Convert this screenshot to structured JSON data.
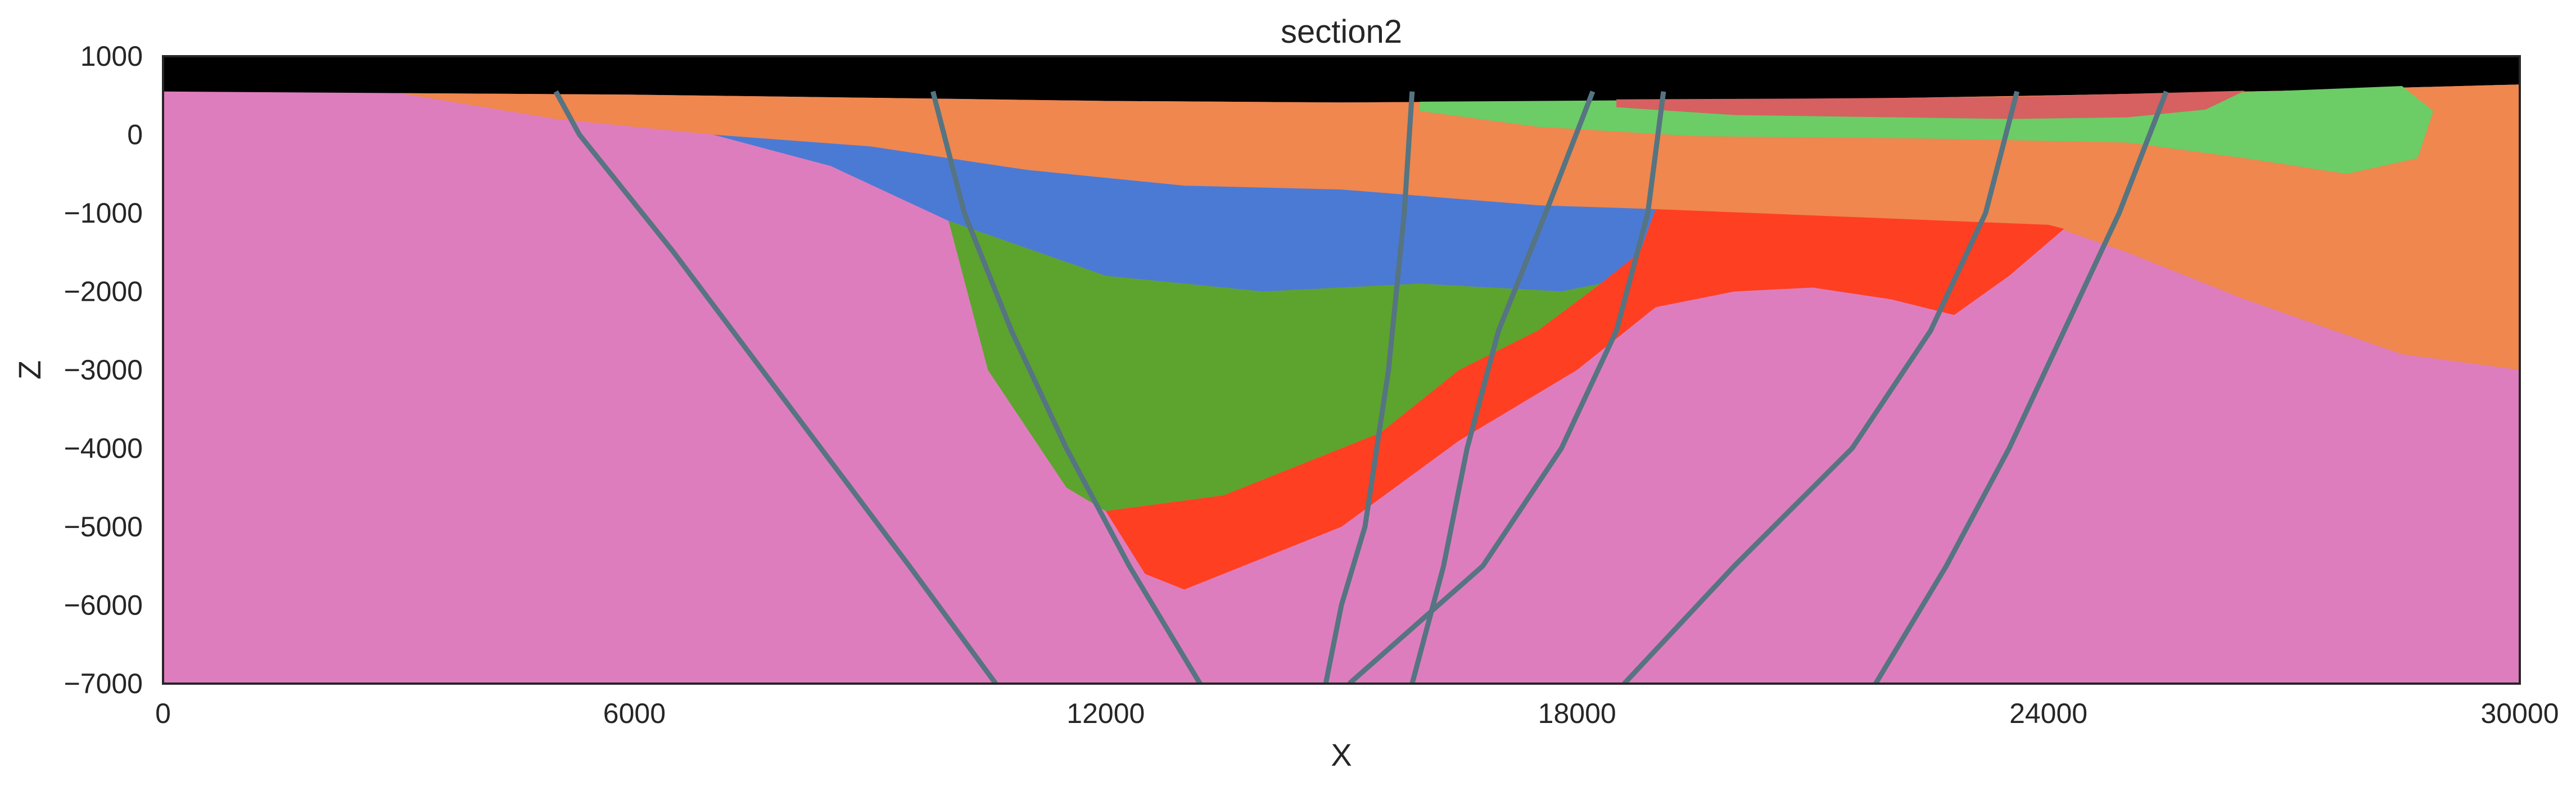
{
  "chart_data": {
    "type": "geological-section",
    "title": "section2",
    "xlabel": "X",
    "ylabel": "Z",
    "xlim": [
      0,
      30000
    ],
    "ylim": [
      -7000,
      1000
    ],
    "xticks": [
      0,
      6000,
      12000,
      18000,
      24000,
      30000
    ],
    "yticks": [
      1000,
      0,
      -1000,
      -2000,
      -3000,
      -4000,
      -5000,
      -6000,
      -7000
    ],
    "xtick_labels": [
      "0",
      "6000",
      "12000",
      "18000",
      "24000",
      "30000"
    ],
    "ytick_labels": [
      "1000",
      "0",
      "−1000",
      "−2000",
      "−3000",
      "−4000",
      "−5000",
      "−6000",
      "−7000"
    ],
    "grid": false,
    "colors": {
      "basement": "#de7dbd",
      "orange": "#ef874e",
      "blue": "#4b7ad4",
      "green_dark": "#5ca42e",
      "red": "#ff3f22",
      "green_light": "#6ccc66",
      "red_light": "#d76061",
      "air": "#000000",
      "fault": "#567481"
    },
    "units": [
      {
        "name": "air",
        "polygon": [
          [
            0,
            1000
          ],
          [
            30000,
            1000
          ],
          [
            30000,
            640
          ],
          [
            27000,
            560
          ],
          [
            24000,
            500
          ],
          [
            21000,
            450
          ],
          [
            18000,
            430
          ],
          [
            15000,
            410
          ],
          [
            12000,
            430
          ],
          [
            9000,
            470
          ],
          [
            6000,
            510
          ],
          [
            3000,
            530
          ],
          [
            0,
            550
          ]
        ]
      },
      {
        "name": "orange",
        "polygon": [
          [
            3000,
            530
          ],
          [
            6000,
            510
          ],
          [
            9000,
            470
          ],
          [
            12000,
            430
          ],
          [
            15000,
            410
          ],
          [
            18000,
            430
          ],
          [
            21000,
            450
          ],
          [
            24000,
            500
          ],
          [
            27000,
            560
          ],
          [
            30000,
            640
          ],
          [
            30000,
            -3000
          ],
          [
            28500,
            -2800
          ],
          [
            26500,
            -2100
          ],
          [
            25000,
            -1500
          ],
          [
            24000,
            -1150
          ],
          [
            21500,
            -1050
          ],
          [
            19000,
            -1000
          ],
          [
            17500,
            -900
          ],
          [
            15000,
            -700
          ],
          [
            13000,
            -650
          ],
          [
            11000,
            -450
          ],
          [
            9000,
            -150
          ],
          [
            7000,
            0
          ],
          [
            5000,
            200
          ]
        ]
      },
      {
        "name": "green_light",
        "polygon": [
          [
            16000,
            420
          ],
          [
            19000,
            440
          ],
          [
            22000,
            460
          ],
          [
            25000,
            500
          ],
          [
            26500,
            540
          ],
          [
            28500,
            620
          ],
          [
            28900,
            300
          ],
          [
            28700,
            -300
          ],
          [
            27800,
            -500
          ],
          [
            26500,
            -300
          ],
          [
            25000,
            -100
          ],
          [
            22500,
            -50
          ],
          [
            19500,
            -20
          ],
          [
            17500,
            100
          ],
          [
            16000,
            300
          ]
        ]
      },
      {
        "name": "red_light",
        "polygon": [
          [
            18500,
            450
          ],
          [
            21000,
            460
          ],
          [
            23500,
            480
          ],
          [
            26500,
            560
          ],
          [
            26000,
            320
          ],
          [
            25000,
            220
          ],
          [
            23500,
            200
          ],
          [
            20000,
            250
          ],
          [
            18500,
            350
          ]
        ]
      },
      {
        "name": "blue",
        "polygon": [
          [
            7000,
            0
          ],
          [
            9000,
            -150
          ],
          [
            11000,
            -450
          ],
          [
            13000,
            -650
          ],
          [
            15000,
            -700
          ],
          [
            17500,
            -900
          ],
          [
            19000,
            -950
          ],
          [
            18800,
            -1500
          ],
          [
            18300,
            -1900
          ],
          [
            17800,
            -2000
          ],
          [
            16000,
            -1900
          ],
          [
            14000,
            -2000
          ],
          [
            12000,
            -1800
          ],
          [
            10000,
            -1100
          ],
          [
            8500,
            -400
          ]
        ]
      },
      {
        "name": "green_dark",
        "polygon": [
          [
            10000,
            -1100
          ],
          [
            12000,
            -1800
          ],
          [
            14000,
            -2000
          ],
          [
            16000,
            -1900
          ],
          [
            17800,
            -2000
          ],
          [
            18300,
            -1900
          ],
          [
            17500,
            -2500
          ],
          [
            16500,
            -3000
          ],
          [
            15500,
            -3800
          ],
          [
            13500,
            -4600
          ],
          [
            12000,
            -4800
          ],
          [
            11500,
            -4500
          ],
          [
            10500,
            -3000
          ]
        ]
      },
      {
        "name": "red",
        "polygon": [
          [
            19000,
            -950
          ],
          [
            21500,
            -1050
          ],
          [
            24000,
            -1150
          ],
          [
            24200,
            -1200
          ],
          [
            23500,
            -1800
          ],
          [
            22800,
            -2300
          ],
          [
            22000,
            -2100
          ],
          [
            21000,
            -1950
          ],
          [
            20000,
            -2000
          ],
          [
            19000,
            -2200
          ],
          [
            18000,
            -3000
          ],
          [
            16500,
            -3900
          ],
          [
            15000,
            -5000
          ],
          [
            13000,
            -5800
          ],
          [
            12500,
            -5600
          ],
          [
            12000,
            -4800
          ],
          [
            13500,
            -4600
          ],
          [
            15500,
            -3800
          ],
          [
            16500,
            -3000
          ],
          [
            17500,
            -2500
          ],
          [
            18300,
            -1900
          ],
          [
            18800,
            -1500
          ]
        ]
      }
    ],
    "faults": [
      [
        [
          5000,
          550
        ],
        [
          5300,
          0
        ],
        [
          6500,
          -1500
        ],
        [
          8000,
          -3500
        ],
        [
          9500,
          -5500
        ],
        [
          10600,
          -7000
        ]
      ],
      [
        [
          9800,
          550
        ],
        [
          10200,
          -1000
        ],
        [
          10800,
          -2500
        ],
        [
          11500,
          -4000
        ],
        [
          12300,
          -5500
        ],
        [
          13200,
          -7000
        ]
      ],
      [
        [
          15900,
          550
        ],
        [
          15800,
          -1000
        ],
        [
          15600,
          -3000
        ],
        [
          15300,
          -5000
        ],
        [
          15000,
          -6000
        ],
        [
          14800,
          -7000
        ]
      ],
      [
        [
          18200,
          550
        ],
        [
          17600,
          -1000
        ],
        [
          17000,
          -2500
        ],
        [
          16600,
          -4000
        ],
        [
          16300,
          -5500
        ],
        [
          15900,
          -7000
        ]
      ],
      [
        [
          19100,
          550
        ],
        [
          18900,
          -1000
        ],
        [
          18500,
          -2500
        ],
        [
          17800,
          -4000
        ],
        [
          16800,
          -5500
        ],
        [
          15100,
          -7000
        ]
      ],
      [
        [
          23600,
          550
        ],
        [
          23200,
          -1000
        ],
        [
          22500,
          -2500
        ],
        [
          21500,
          -4000
        ],
        [
          20000,
          -5500
        ],
        [
          18600,
          -7000
        ]
      ],
      [
        [
          25500,
          550
        ],
        [
          24900,
          -1000
        ],
        [
          24200,
          -2500
        ],
        [
          23500,
          -4000
        ],
        [
          22700,
          -5500
        ],
        [
          21800,
          -7000
        ]
      ]
    ]
  }
}
